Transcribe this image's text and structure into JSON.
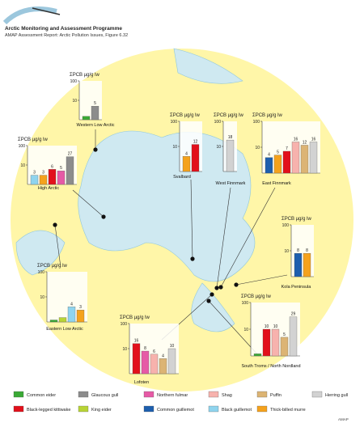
{
  "header": {
    "title": "Arctic Monitoring and Assessment Programme",
    "subtitle": "AMAP Assessment Report: Arctic Pollution Issues, Figure 6.32"
  },
  "footer": "AMAP",
  "legend": [
    {
      "name": "Common eider",
      "color": "#3aa935"
    },
    {
      "name": "Glaucous gull",
      "color": "#8c8c8c"
    },
    {
      "name": "Northern fulmar",
      "color": "#e65aa6"
    },
    {
      "name": "Shag",
      "color": "#f7b2ad"
    },
    {
      "name": "Puffin",
      "color": "#dcb474"
    },
    {
      "name": "Herring gull",
      "color": "#d2d2d2"
    },
    {
      "name": "Black-legged kittiwake",
      "color": "#e2101b"
    },
    {
      "name": "King eider",
      "color": "#b8d435"
    },
    {
      "name": "Common guillemot",
      "color": "#1d5fae"
    },
    {
      "name": "Black guillemot",
      "color": "#8fd4ee"
    },
    {
      "name": "Thick-billed murre",
      "color": "#f5a21c"
    }
  ],
  "chart_data": [
    {
      "type": "bar",
      "title": "Western Low Arctic",
      "y_label": "ΣPCB µg/g lw",
      "log_scale": true,
      "ylim": [
        1,
        100
      ],
      "yticks": [
        10,
        100
      ],
      "categories": [
        "Common eider",
        "Glaucous gull"
      ],
      "values": [
        1.5,
        5
      ],
      "value_labels": [
        null,
        "5"
      ]
    },
    {
      "type": "bar",
      "title": "High Arctic",
      "y_label": "ΣPCB µg/g lw",
      "log_scale": true,
      "ylim": [
        1,
        100
      ],
      "yticks": [
        10,
        100
      ],
      "categories": [
        "Black guillemot",
        "Thick-billed murre",
        "Black-legged kittiwake",
        "Northern fulmar",
        "Glaucous gull"
      ],
      "values": [
        3,
        3,
        6,
        5,
        27
      ],
      "value_labels": [
        "3",
        "3",
        "6",
        "5",
        "27"
      ]
    },
    {
      "type": "bar",
      "title": "Svalbard",
      "y_label": "ΣPCB µg/g lw",
      "log_scale": true,
      "ylim": [
        1,
        100
      ],
      "yticks": [
        10,
        100
      ],
      "categories": [
        "Thick-billed murre",
        "Black-legged kittiwake"
      ],
      "values": [
        4,
        12
      ],
      "value_labels": [
        "4",
        "12"
      ]
    },
    {
      "type": "bar",
      "title": "West Finnmark",
      "y_label": "ΣPCB µg/g lw",
      "log_scale": true,
      "ylim": [
        1,
        100
      ],
      "yticks": [
        10,
        100
      ],
      "categories": [
        "Herring gull"
      ],
      "values": [
        18
      ],
      "value_labels": [
        "18"
      ]
    },
    {
      "type": "bar",
      "title": "East Finnmark",
      "y_label": "ΣPCB µg/g lw",
      "log_scale": true,
      "ylim": [
        1,
        100
      ],
      "yticks": [
        10,
        100
      ],
      "categories": [
        "Common guillemot",
        "Thick-billed murre",
        "Black-legged kittiwake",
        "Shag",
        "Puffin",
        "Herring gull"
      ],
      "values": [
        4,
        5,
        7,
        16,
        12,
        16
      ],
      "value_labels": [
        "4",
        "5",
        "7",
        "16",
        "12",
        "16"
      ]
    },
    {
      "type": "bar",
      "title": "Kola Peninsula",
      "y_label": "ΣPCB µg/g lw",
      "log_scale": true,
      "ylim": [
        1,
        100
      ],
      "yticks": [
        10,
        100
      ],
      "categories": [
        "Common guillemot",
        "Thick-billed murre"
      ],
      "values": [
        8,
        8
      ],
      "value_labels": [
        "8",
        "8"
      ]
    },
    {
      "type": "bar",
      "title": "Eastern Low Arctic",
      "y_label": "ΣPCB µg/g lw",
      "log_scale": true,
      "ylim": [
        1,
        100
      ],
      "yticks": [
        10,
        100
      ],
      "categories": [
        "Common eider",
        "King eider",
        "Black guillemot",
        "Thick-billed murre"
      ],
      "values": [
        1.2,
        1.5,
        4,
        3
      ],
      "value_labels": [
        null,
        null,
        "4",
        "3"
      ]
    },
    {
      "type": "bar",
      "title": "Lofoten",
      "y_label": "ΣPCB µg/g lw",
      "log_scale": true,
      "ylim": [
        1,
        100
      ],
      "yticks": [
        10,
        100
      ],
      "categories": [
        "Black-legged kittiwake",
        "Northern fulmar",
        "Shag",
        "Puffin",
        "Herring gull"
      ],
      "values": [
        16,
        8,
        6,
        4,
        10
      ],
      "value_labels": [
        "16",
        "8",
        "6",
        "4",
        "10"
      ]
    },
    {
      "type": "bar",
      "title": "South Troms / North Nordland",
      "y_label": "ΣPCB µg/g lw",
      "log_scale": true,
      "ylim": [
        1,
        100
      ],
      "yticks": [
        10,
        100
      ],
      "categories": [
        "Common eider",
        "Black-legged kittiwake",
        "Shag",
        "Puffin",
        "Herring gull"
      ],
      "values": [
        1.2,
        10,
        10,
        5,
        29
      ],
      "value_labels": [
        null,
        "10",
        "10",
        "5",
        "29"
      ]
    }
  ]
}
